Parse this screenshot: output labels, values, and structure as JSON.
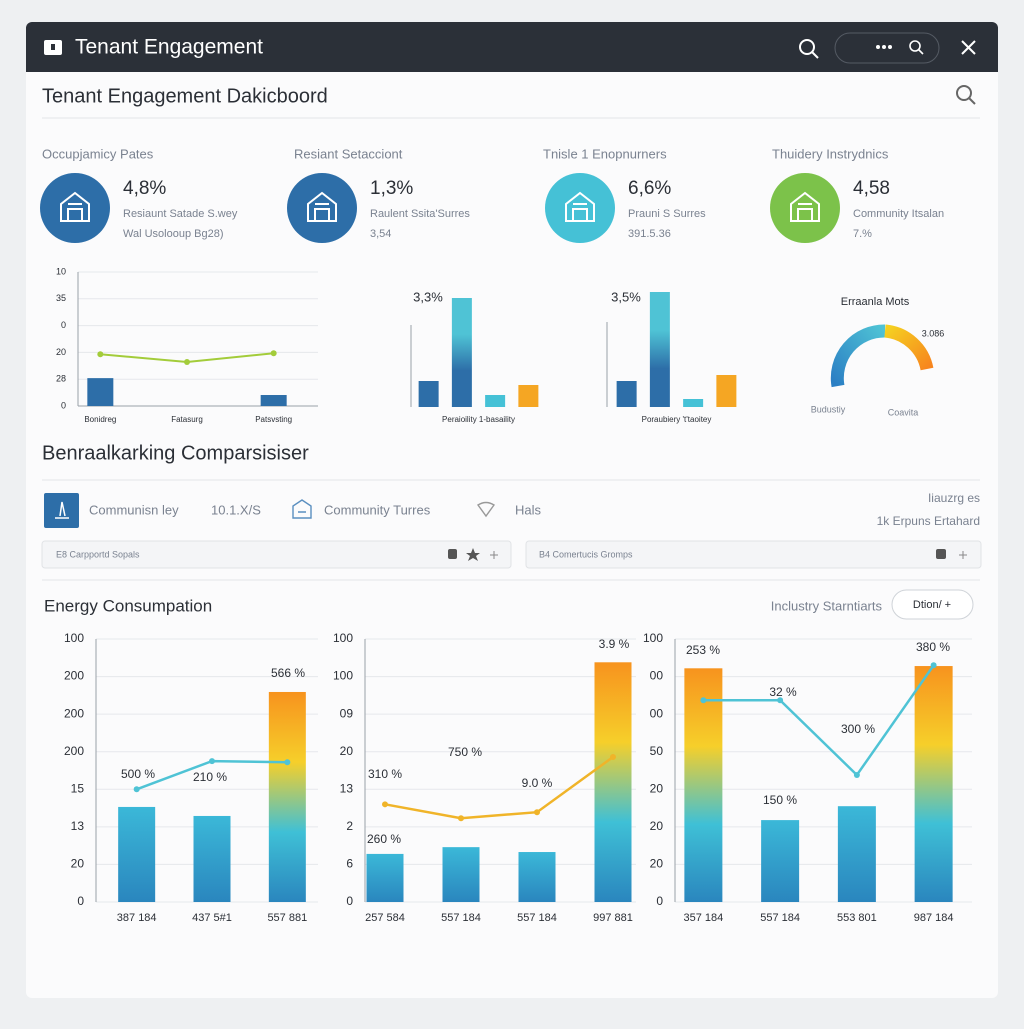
{
  "window": {
    "title": "Tenant Engagement"
  },
  "header": {
    "title": "Tenant Engagement Dakicboord"
  },
  "kpis": [
    {
      "label": "Occupjamicy Pates",
      "value": "4,8%",
      "lines": [
        "Resiaunt Satade S.wey",
        "Wal Usolooup Bg28)"
      ]
    },
    {
      "label": "Resiant Setacciont",
      "value": "1,3%",
      "lines": [
        "Raulent Ssita'Surres",
        "3,54"
      ]
    },
    {
      "label": "Tnisle 1 Enopnurners",
      "value": "6,6%",
      "lines": [
        "Prauni S Surres",
        "391.5.36"
      ]
    },
    {
      "label": "Thuidery Instrydnics",
      "value": "4,58",
      "lines": [
        "Community Itsalan",
        "7.%"
      ]
    }
  ],
  "gauge": {
    "title": "Erraanla Mots",
    "reading": "3.086",
    "labels": [
      "Budustiy",
      "Coavita"
    ]
  },
  "benchmark": {
    "title": "Benraalkarking Comparsisiser",
    "filters": [
      "Communisn ley",
      "10.1.X/S",
      "Community Turres",
      "Hals"
    ],
    "right": [
      "Iiauzrg es",
      "1k Erpuns Ertahard"
    ],
    "searches": [
      "E8 Carpportd Sopals",
      "B4 Comertucis Gromps"
    ]
  },
  "energy": {
    "title": "Energy Consumpation",
    "standards": "Inclustry Starntiarts",
    "button": "Dtion/ +"
  },
  "chart_data": [
    {
      "type": "bar",
      "categories": [
        "Bonidreg",
        "Fatasurg",
        "Patsvsting"
      ],
      "ylim": [
        0,
        5
      ],
      "yticks": [
        {
          "value": 0,
          "label": "0"
        },
        {
          "value": 1,
          "label": "28"
        },
        {
          "value": 2,
          "label": "20"
        },
        {
          "value": 3,
          "label": "0"
        },
        {
          "value": 4,
          "label": "35"
        },
        {
          "value": 5,
          "label": "10"
        }
      ],
      "grid": true,
      "series": [
        {
          "type": "bar",
          "color": "#2d6ea8",
          "values": [
            1.04,
            null,
            0.41
          ]
        },
        {
          "type": "line",
          "color": "#a3cc3a",
          "values": [
            1.93,
            1.64,
            1.97
          ]
        }
      ]
    },
    {
      "type": "bar",
      "categories": [
        null,
        null,
        null,
        null
      ],
      "xlabel": "Peraioility 1-basaility",
      "ylim": [
        0,
        110
      ],
      "annotations": [
        "3,3%"
      ],
      "series": [
        {
          "type": "bar",
          "values": [
            26,
            109,
            12,
            22
          ],
          "colors": [
            "#2d6ea8",
            [
              "#4fc3d5",
              "#4fc3d5",
              "#2d6ea8",
              "#2d6ea8"
            ],
            "#45c1d6",
            "#f5a623"
          ]
        }
      ]
    },
    {
      "type": "bar",
      "categories": [
        null,
        null,
        null,
        null
      ],
      "xlabel": "Poraubiery 't'taoitey",
      "ylim": [
        0,
        110
      ],
      "annotations": [
        "3,5%"
      ],
      "series": [
        {
          "type": "bar",
          "values": [
            26,
            115,
            8,
            32
          ],
          "colors": [
            "#2d6ea8",
            [
              "#4fc3d5",
              "#4fc3d5",
              "#2d6ea8",
              "#2d6ea8"
            ],
            "#45c1d6",
            "#f5a623"
          ]
        }
      ]
    },
    {
      "type": "bar",
      "categories": [
        "387 184",
        "437 5#1",
        "557 881"
      ],
      "ylim": [
        0,
        7
      ],
      "yticks": [
        {
          "value": 0,
          "label": "0"
        },
        {
          "value": 1,
          "label": "20"
        },
        {
          "value": 2,
          "label": "13"
        },
        {
          "value": 3,
          "label": "15"
        },
        {
          "value": 4,
          "label": "200"
        },
        {
          "value": 5,
          "label": "200"
        },
        {
          "value": 6,
          "label": "200"
        },
        {
          "value": 7,
          "label": "100"
        }
      ],
      "grid": true,
      "annotations": [
        "500 %",
        "210 %",
        "566 %"
      ],
      "series": [
        {
          "type": "bar",
          "values": [
            2.53,
            2.29,
            5.59
          ],
          "colors": [
            [
              "#3bb8d8",
              "#2a86be"
            ],
            [
              "#3bb8d8",
              "#2a86be"
            ],
            [
              "#f7931e",
              "#f6cf2a",
              "#3fc0d6",
              "#2a86be"
            ]
          ]
        },
        {
          "type": "line",
          "color": "#4fc3d5",
          "values": [
            3.0,
            3.75,
            3.72
          ]
        }
      ]
    },
    {
      "type": "bar",
      "categories": [
        "257 584",
        "557 184",
        "557 184",
        "997 881"
      ],
      "ylim": [
        0,
        7
      ],
      "yticks": [
        {
          "value": 0,
          "label": "0"
        },
        {
          "value": 1,
          "label": "6"
        },
        {
          "value": 2,
          "label": "2"
        },
        {
          "value": 3,
          "label": "13"
        },
        {
          "value": 4,
          "label": "20"
        },
        {
          "value": 5,
          "label": "09"
        },
        {
          "value": 6,
          "label": "100"
        },
        {
          "value": 7,
          "label": "100"
        }
      ],
      "grid": true,
      "annotations": [
        "310 %",
        "750 %",
        "9.0 %",
        "3.9 %",
        "260 %"
      ],
      "series": [
        {
          "type": "bar",
          "values": [
            1.28,
            1.46,
            1.33,
            6.38
          ],
          "colors": [
            [
              "#3bb8d8",
              "#2a86be"
            ],
            [
              "#3bb8d8",
              "#2a86be"
            ],
            [
              "#3bb8d8",
              "#2a86be"
            ],
            [
              "#f7931e",
              "#f6cf2a",
              "#3fc0d6",
              "#2a86be"
            ]
          ]
        },
        {
          "type": "line",
          "color": "#f0b429",
          "values": [
            2.6,
            2.23,
            2.39,
            3.86
          ]
        }
      ]
    },
    {
      "type": "bar",
      "categories": [
        "357 184",
        "557 184",
        "553 801",
        "987 184"
      ],
      "ylim": [
        0,
        7
      ],
      "yticks": [
        {
          "value": 0,
          "label": "0"
        },
        {
          "value": 1,
          "label": "20"
        },
        {
          "value": 2,
          "label": "20"
        },
        {
          "value": 3,
          "label": "20"
        },
        {
          "value": 4,
          "label": "50"
        },
        {
          "value": 5,
          "label": "00"
        },
        {
          "value": 6,
          "label": "00"
        },
        {
          "value": 7,
          "label": "100"
        }
      ],
      "grid": true,
      "annotations": [
        "253 %",
        "32 %",
        "300 %",
        "150 %",
        "380 %"
      ],
      "series": [
        {
          "type": "bar",
          "values": [
            6.22,
            2.18,
            2.55,
            6.28
          ],
          "colors": [
            [
              "#f7931e",
              "#f6cf2a",
              "#3fc0d6",
              "#2a86be"
            ],
            [
              "#3bb8d8",
              "#2a86be"
            ],
            [
              "#3bb8d8",
              "#2a86be"
            ],
            [
              "#f7931e",
              "#f6cf2a",
              "#3fc0d6",
              "#2a86be"
            ]
          ]
        },
        {
          "type": "line",
          "color": "#4fc3d5",
          "values": [
            5.37,
            5.37,
            3.38,
            6.3
          ]
        }
      ]
    }
  ]
}
